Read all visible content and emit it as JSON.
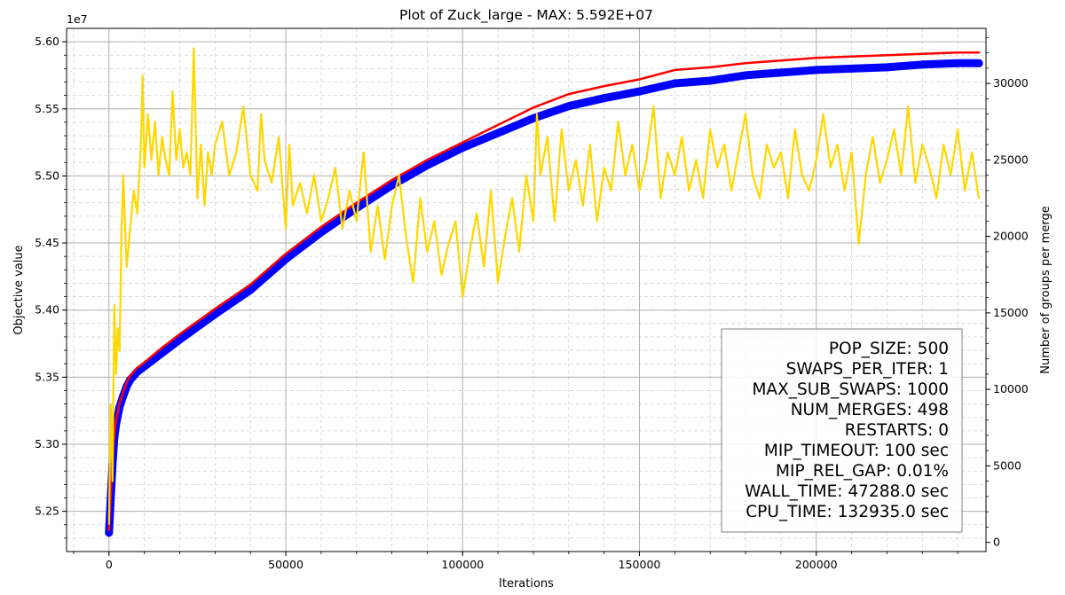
{
  "chart_data": {
    "type": "line",
    "title": "Plot of Zuck_large - MAX: 5.592E+07",
    "xlabel": "Iterations",
    "ylabel": "Objective value",
    "y2label": "Number of groups per merge",
    "y_offset_label": "1e7",
    "xlim": [
      -12000,
      248000
    ],
    "ylim": [
      52200000,
      56100000
    ],
    "y2lim": [
      -600,
      33600
    ],
    "grid": true,
    "x_ticks": [
      0,
      50000,
      100000,
      150000,
      200000
    ],
    "x_tick_labels": [
      "0",
      "50000",
      "100000",
      "150000",
      "200000"
    ],
    "y_ticks": [
      52500000,
      53000000,
      53500000,
      54000000,
      54500000,
      55000000,
      55500000,
      56000000
    ],
    "y_tick_labels": [
      "5.25",
      "5.30",
      "5.35",
      "5.40",
      "5.45",
      "5.50",
      "5.55",
      "5.60"
    ],
    "y2_ticks": [
      0,
      5000,
      10000,
      15000,
      20000,
      25000,
      30000
    ],
    "y2_tick_labels": [
      "0",
      "5000",
      "10000",
      "15000",
      "20000",
      "25000",
      "30000"
    ],
    "series": [
      {
        "axis": "left",
        "color": "#0000ff",
        "x": [
          0,
          500,
          1000,
          1500,
          2000,
          3000,
          4000,
          5000,
          6000,
          8000,
          10000,
          15000,
          20000,
          30000,
          40000,
          50000,
          60000,
          70000,
          80000,
          90000,
          100000,
          110000,
          120000,
          130000,
          140000,
          150000,
          160000,
          170000,
          180000,
          190000,
          200000,
          210000,
          220000,
          230000,
          240000,
          246000
        ],
        "y": [
          52340000,
          52600000,
          52850000,
          53050000,
          53150000,
          53280000,
          53360000,
          53430000,
          53480000,
          53540000,
          53580000,
          53680000,
          53780000,
          53970000,
          54150000,
          54380000,
          54580000,
          54760000,
          54930000,
          55080000,
          55210000,
          55320000,
          55430000,
          55520000,
          55580000,
          55630000,
          55690000,
          55710000,
          55750000,
          55770000,
          55790000,
          55800000,
          55810000,
          55830000,
          55840000,
          55840000
        ]
      },
      {
        "axis": "left",
        "color": "#ff0000",
        "x": [
          0,
          500,
          1000,
          1500,
          2000,
          3000,
          4000,
          5000,
          6000,
          8000,
          10000,
          15000,
          20000,
          30000,
          40000,
          50000,
          60000,
          70000,
          80000,
          90000,
          100000,
          110000,
          120000,
          130000,
          140000,
          150000,
          160000,
          170000,
          180000,
          190000,
          200000,
          210000,
          220000,
          230000,
          240000,
          246000
        ],
        "y": [
          52360000,
          52620000,
          52880000,
          53080000,
          53180000,
          53310000,
          53390000,
          53460000,
          53510000,
          53570000,
          53610000,
          53720000,
          53820000,
          54010000,
          54190000,
          54420000,
          54620000,
          54800000,
          54970000,
          55120000,
          55250000,
          55380000,
          55510000,
          55610000,
          55670000,
          55720000,
          55790000,
          55810000,
          55840000,
          55860000,
          55880000,
          55890000,
          55900000,
          55910000,
          55920000,
          55920000
        ]
      },
      {
        "axis": "right",
        "color": "#ffd700",
        "x": [
          0,
          500,
          1000,
          1500,
          2000,
          2500,
          3000,
          3500,
          4000,
          5000,
          6000,
          7000,
          8000,
          9000,
          9500,
          10000,
          11000,
          12000,
          13000,
          14000,
          15000,
          16000,
          17000,
          18000,
          19000,
          20000,
          21000,
          22000,
          23000,
          24000,
          25000,
          26000,
          27000,
          28000,
          29000,
          30000,
          32000,
          34000,
          36000,
          38000,
          40000,
          42000,
          43000,
          44000,
          46000,
          48000,
          50000,
          51000,
          52000,
          54000,
          56000,
          58000,
          60000,
          62000,
          64000,
          66000,
          68000,
          70000,
          72000,
          74000,
          76000,
          78000,
          80000,
          82000,
          84000,
          86000,
          88000,
          90000,
          92000,
          94000,
          96000,
          98000,
          100000,
          102000,
          104000,
          106000,
          108000,
          110000,
          112000,
          114000,
          116000,
          118000,
          120000,
          121000,
          122000,
          124000,
          126000,
          128000,
          130000,
          132000,
          134000,
          136000,
          138000,
          140000,
          142000,
          144000,
          146000,
          148000,
          150000,
          152000,
          154000,
          156000,
          158000,
          160000,
          162000,
          164000,
          166000,
          168000,
          170000,
          172000,
          174000,
          176000,
          178000,
          180000,
          182000,
          184000,
          186000,
          188000,
          190000,
          192000,
          194000,
          196000,
          198000,
          200000,
          202000,
          204000,
          206000,
          208000,
          210000,
          212000,
          214000,
          216000,
          218000,
          220000,
          222000,
          224000,
          226000,
          228000,
          230000,
          232000,
          234000,
          236000,
          238000,
          240000,
          242000,
          244000,
          246000
        ],
        "y": [
          1200,
          9000,
          4000,
          15500,
          11000,
          14000,
          12500,
          20000,
          24000,
          18000,
          20500,
          23000,
          21500,
          26000,
          30500,
          24500,
          28000,
          25000,
          27500,
          24000,
          26500,
          25000,
          24000,
          29500,
          25000,
          27000,
          24500,
          25500,
          24000,
          32300,
          22500,
          26000,
          22000,
          25500,
          24000,
          26000,
          27500,
          24000,
          25500,
          28500,
          24000,
          23000,
          28000,
          25000,
          23500,
          26500,
          20500,
          26000,
          22000,
          23500,
          21500,
          24000,
          21000,
          22500,
          24500,
          20500,
          23000,
          21000,
          25500,
          19000,
          22000,
          18500,
          22000,
          24000,
          20000,
          17000,
          22500,
          19000,
          21000,
          17500,
          19500,
          21000,
          16000,
          19000,
          21500,
          18000,
          23000,
          17000,
          20000,
          22500,
          19000,
          24000,
          21000,
          28000,
          24000,
          26500,
          21000,
          27000,
          23000,
          25000,
          22000,
          26000,
          21000,
          24500,
          23000,
          27500,
          24000,
          26000,
          23000,
          25000,
          28500,
          22500,
          25500,
          24000,
          26500,
          23000,
          25000,
          22500,
          27000,
          24500,
          26000,
          23000,
          25500,
          28000,
          24000,
          22500,
          26000,
          24500,
          25500,
          22500,
          27000,
          24000,
          23000,
          25000,
          28000,
          24500,
          26000,
          23000,
          25500,
          19500,
          24000,
          26500,
          23500,
          25000,
          27000,
          24000,
          28500,
          23500,
          26000,
          24500,
          22500,
          26000,
          24000,
          27000,
          23000,
          25500,
          22500
        ]
      }
    ]
  },
  "info_box": {
    "lines": [
      "POP_SIZE: 500",
      "SWAPS_PER_ITER: 1",
      "MAX_SUB_SWAPS: 1000",
      "NUM_MERGES: 498",
      "RESTARTS: 0",
      "MIP_TIMEOUT: 100 sec",
      "MIP_REL_GAP: 0.01%",
      "WALL_TIME: 47288.0 sec",
      "CPU_TIME: 132935.0 sec"
    ]
  }
}
